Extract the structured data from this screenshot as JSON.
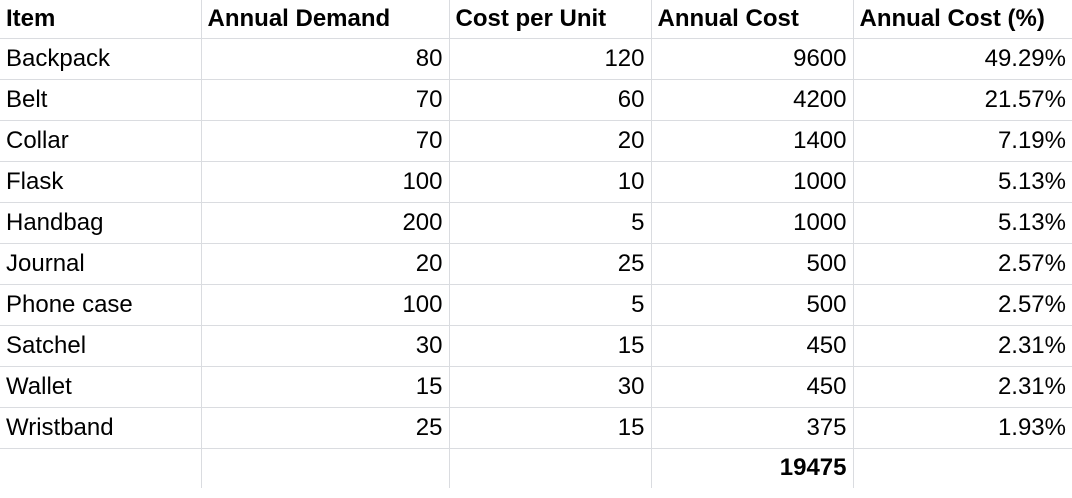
{
  "headers": {
    "item": "Item",
    "annual_demand": "Annual Demand",
    "cost_per_unit": "Cost per Unit",
    "annual_cost": "Annual Cost",
    "annual_cost_pct": "Annual Cost (%)"
  },
  "rows": [
    {
      "item": "Backpack",
      "annual_demand": "80",
      "cost_per_unit": "120",
      "annual_cost": "9600",
      "annual_cost_pct": "49.29%"
    },
    {
      "item": "Belt",
      "annual_demand": "70",
      "cost_per_unit": "60",
      "annual_cost": "4200",
      "annual_cost_pct": "21.57%"
    },
    {
      "item": "Collar",
      "annual_demand": "70",
      "cost_per_unit": "20",
      "annual_cost": "1400",
      "annual_cost_pct": "7.19%"
    },
    {
      "item": "Flask",
      "annual_demand": "100",
      "cost_per_unit": "10",
      "annual_cost": "1000",
      "annual_cost_pct": "5.13%"
    },
    {
      "item": "Handbag",
      "annual_demand": "200",
      "cost_per_unit": "5",
      "annual_cost": "1000",
      "annual_cost_pct": "5.13%"
    },
    {
      "item": "Journal",
      "annual_demand": "20",
      "cost_per_unit": "25",
      "annual_cost": "500",
      "annual_cost_pct": "2.57%"
    },
    {
      "item": "Phone case",
      "annual_demand": "100",
      "cost_per_unit": "5",
      "annual_cost": "500",
      "annual_cost_pct": "2.57%"
    },
    {
      "item": "Satchel",
      "annual_demand": "30",
      "cost_per_unit": "15",
      "annual_cost": "450",
      "annual_cost_pct": "2.31%"
    },
    {
      "item": "Wallet",
      "annual_demand": "15",
      "cost_per_unit": "30",
      "annual_cost": "450",
      "annual_cost_pct": "2.31%"
    },
    {
      "item": "Wristband",
      "annual_demand": "25",
      "cost_per_unit": "15",
      "annual_cost": "375",
      "annual_cost_pct": "1.93%"
    }
  ],
  "total": {
    "annual_cost": "19475"
  },
  "colors": {
    "gridline": "#dadce0",
    "text": "#000000",
    "background": "#ffffff"
  }
}
